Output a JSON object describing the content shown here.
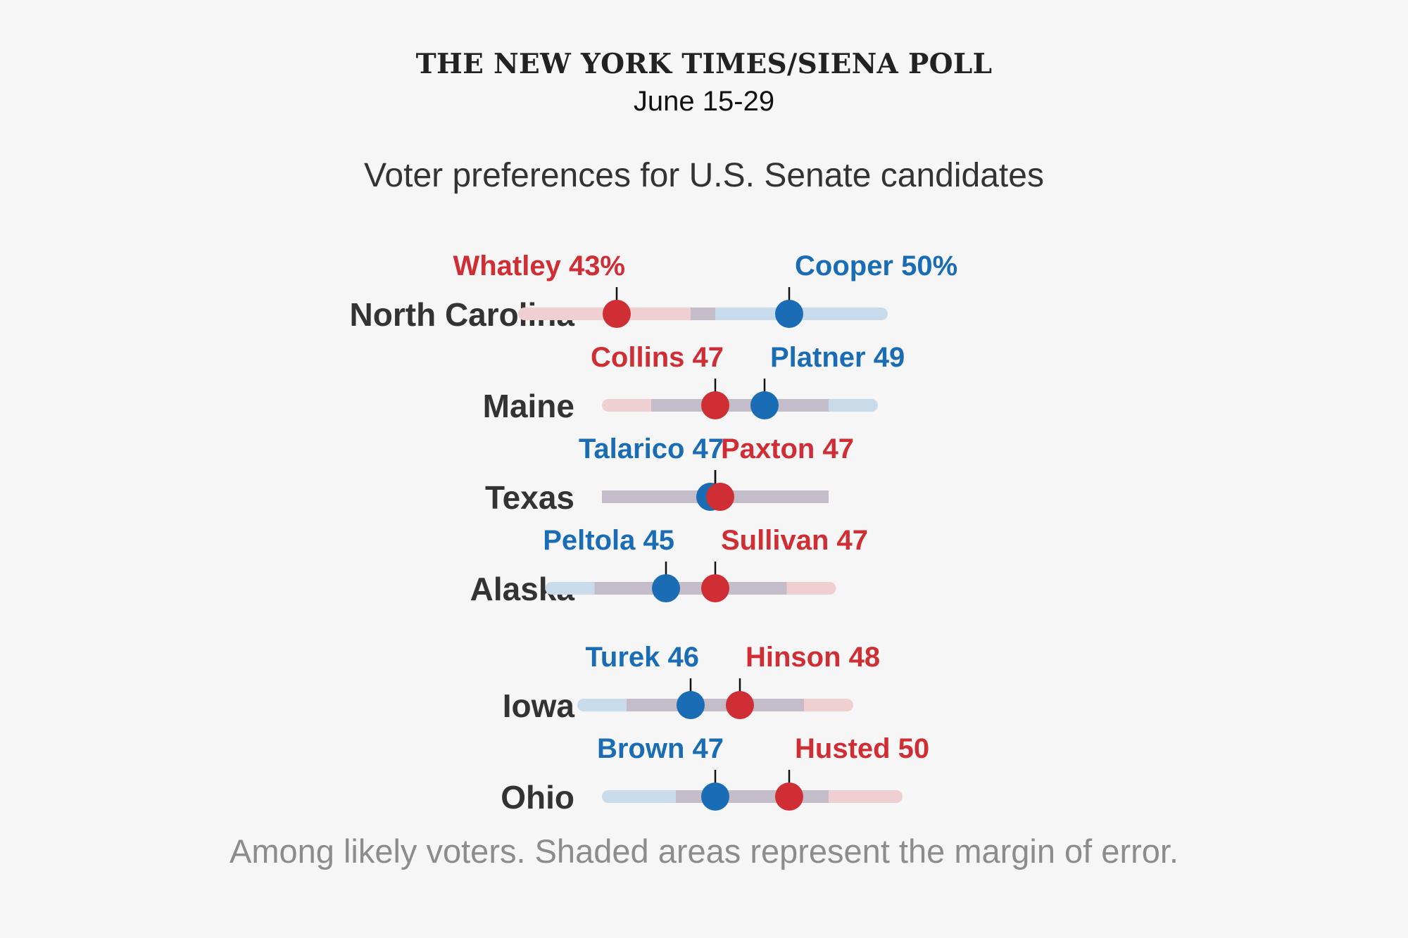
{
  "header": {
    "source": "THE NEW YORK TIMES/SIENA POLL",
    "dates": "June 15-29"
  },
  "colors": {
    "dem": "#1a6db4",
    "rep": "#cf2e35",
    "dem_band": "#c8dbea",
    "rep_band": "#f0cfd1",
    "overlap_band": "#c4bcc8",
    "state_label": "#333333",
    "background": "#f6f6f6"
  },
  "chart_data": {
    "type": "scatter",
    "title": "Voter preferences for U.S. Senate candidates",
    "note": "Among likely voters. Shaded areas represent the margin of error.",
    "value_unit": "percent",
    "rows": [
      {
        "state": "North Carolina",
        "moe": 4,
        "label_offset": 0,
        "candidates": [
          {
            "name": "Whatley",
            "label": "Whatley 43%",
            "value": 43,
            "party": "rep"
          },
          {
            "name": "Cooper",
            "label": "Cooper 50%",
            "value": 50,
            "party": "dem"
          }
        ]
      },
      {
        "state": "Maine",
        "moe": 4.6,
        "label_offset": 0,
        "candidates": [
          {
            "name": "Collins",
            "label": "Collins 47",
            "value": 47,
            "party": "rep"
          },
          {
            "name": "Platner",
            "label": "Platner 49",
            "value": 49,
            "party": "dem"
          }
        ]
      },
      {
        "state": "Texas",
        "moe": 4.6,
        "label_offset": 0,
        "candidates": [
          {
            "name": "Talarico",
            "label": "Talarico 47",
            "value": 47,
            "party": "dem"
          },
          {
            "name": "Paxton",
            "label": "Paxton 47",
            "value": 47,
            "party": "rep"
          }
        ]
      },
      {
        "state": "Alaska",
        "moe": 4.9,
        "label_offset": 0,
        "candidates": [
          {
            "name": "Peltola",
            "label": "Peltola 45",
            "value": 45,
            "party": "dem"
          },
          {
            "name": "Sullivan",
            "label": "Sullivan 47",
            "value": 47,
            "party": "rep"
          }
        ]
      },
      {
        "state": "Iowa",
        "moe": 4.6,
        "label_offset": 14,
        "candidates": [
          {
            "name": "Turek",
            "label": "Turek 46",
            "value": 46,
            "party": "dem"
          },
          {
            "name": "Hinson",
            "label": "Hinson 48",
            "value": 48,
            "party": "rep"
          }
        ]
      },
      {
        "state": "Ohio",
        "moe": 4.6,
        "label_offset": 0,
        "candidates": [
          {
            "name": "Brown",
            "label": "Brown 47",
            "value": 47,
            "party": "dem"
          },
          {
            "name": "Husted",
            "label": "Husted 50",
            "value": 50,
            "party": "rep"
          }
        ]
      }
    ]
  }
}
